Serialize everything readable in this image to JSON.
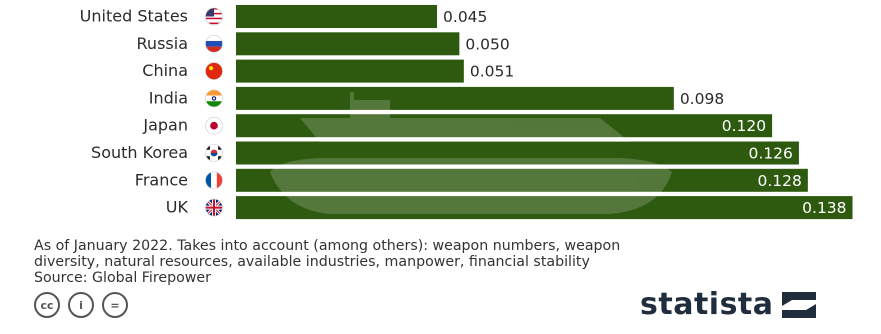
{
  "chart_data": {
    "type": "bar",
    "orientation": "horizontal",
    "categories": [
      "United States",
      "Russia",
      "China",
      "India",
      "Japan",
      "South Korea",
      "France",
      "UK"
    ],
    "values": [
      0.045,
      0.05,
      0.051,
      0.098,
      0.12,
      0.126,
      0.128,
      0.138
    ],
    "value_labels": [
      "0.045",
      "0.050",
      "0.051",
      "0.098",
      "0.120",
      "0.126",
      "0.128",
      "0.138"
    ],
    "flags": [
      "us-flag-icon",
      "russia-flag-icon",
      "china-flag-icon",
      "india-flag-icon",
      "japan-flag-icon",
      "south-korea-flag-icon",
      "france-flag-icon",
      "uk-flag-icon"
    ],
    "bar_color": "#2e5a10",
    "xlim": [
      0,
      0.139
    ]
  },
  "footer": {
    "note_line1": "As of January 2022. Takes into account (among others): weapon numbers, weapon",
    "note_line2": "diversity, natural resources, available industries, manpower, financial stability",
    "source": "Source: Global Firepower"
  },
  "license_icons": [
    "cc",
    "i",
    "="
  ],
  "brand": {
    "name": "statista"
  }
}
